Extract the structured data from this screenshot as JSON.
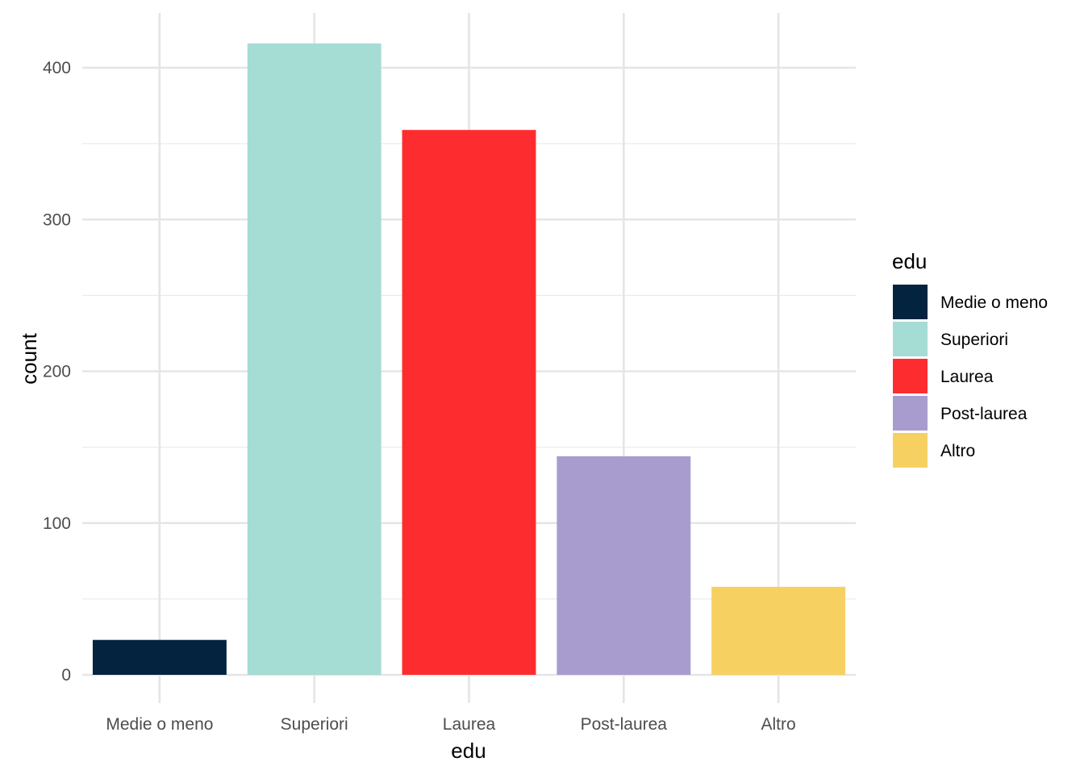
{
  "chart_data": {
    "type": "bar",
    "categories": [
      "Medie o meno",
      "Superiori",
      "Laurea",
      "Post-laurea",
      "Altro"
    ],
    "values": [
      23,
      416,
      359,
      144,
      58
    ],
    "colors": [
      "#03233f",
      "#a5dcd4",
      "#fd2d2f",
      "#a89cce",
      "#f7d062"
    ],
    "xlabel": "edu",
    "ylabel": "count",
    "ylim": [
      0,
      440
    ],
    "yticks": [
      0,
      100,
      200,
      300,
      400
    ],
    "grid": true,
    "legend": {
      "title": "edu",
      "placement": "right",
      "entries": [
        "Medie o meno",
        "Superiori",
        "Laurea",
        "Post-laurea",
        "Altro"
      ]
    }
  }
}
